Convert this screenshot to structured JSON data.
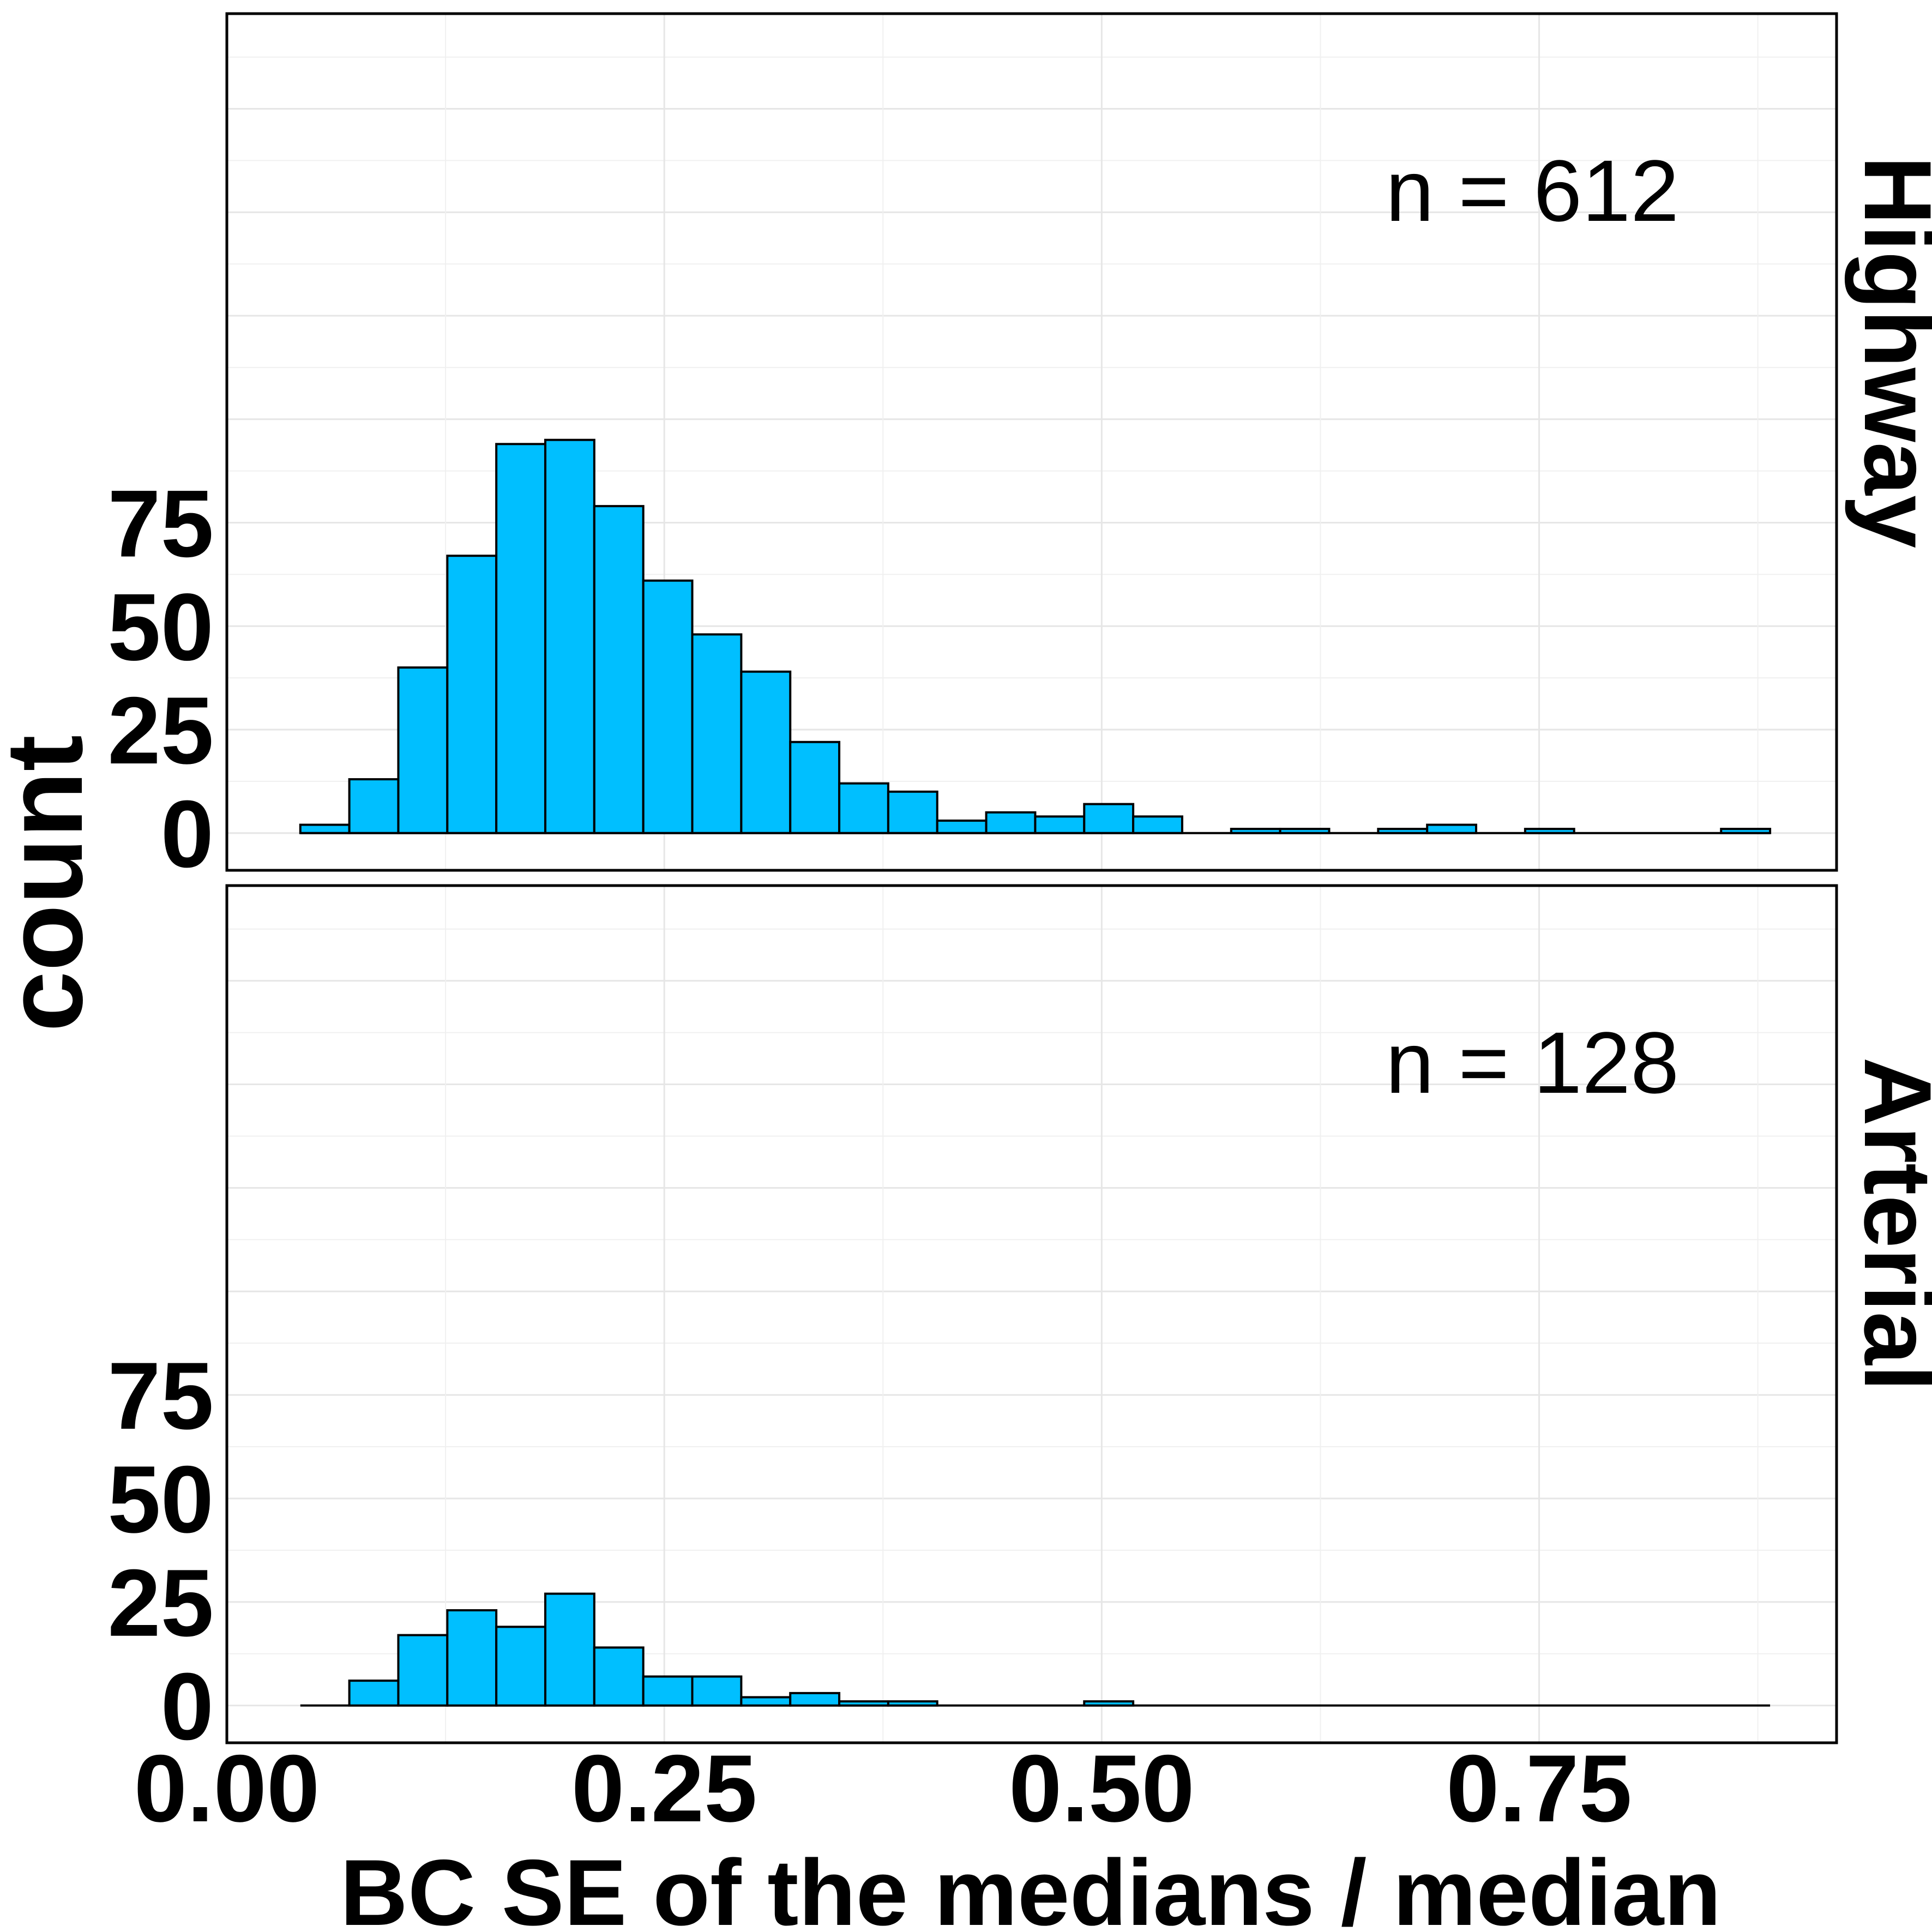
{
  "chart_data": {
    "type": "bar",
    "xlabel": "BC SE of the  medians / median",
    "ylabel": "count",
    "xlim": [
      0,
      0.92
    ],
    "ylim": [
      -9,
      198
    ],
    "x_ticks": [
      0,
      0.25,
      0.5,
      0.75
    ],
    "x_tick_labels": [
      "0.00",
      "0.25",
      "0.50",
      "0.75"
    ],
    "y_ticks": [
      0,
      25,
      50,
      75
    ],
    "y_tick_labels": [
      "0",
      "25",
      "50",
      "75"
    ],
    "grid": true,
    "bar_color": "#00BFFF",
    "bin_start": 0.042,
    "bin_width": 0.028,
    "bin_count": 30,
    "panels": [
      {
        "facet": "Highway",
        "annotation": "n = 612",
        "values": [
          2,
          13,
          40,
          67,
          94,
          95,
          79,
          61,
          48,
          39,
          22,
          12,
          10,
          3,
          5,
          4,
          7,
          4,
          0,
          1,
          1,
          0,
          1,
          2,
          0,
          1,
          0,
          0,
          0,
          1
        ]
      },
      {
        "facet": "Arterial",
        "annotation": "n = 128",
        "values": [
          0,
          6,
          17,
          23,
          19,
          27,
          14,
          7,
          7,
          2,
          3,
          1,
          1,
          0,
          0,
          0,
          1,
          0,
          0,
          0,
          0,
          0,
          0,
          0,
          0,
          0,
          0,
          0,
          0,
          0
        ]
      }
    ]
  }
}
